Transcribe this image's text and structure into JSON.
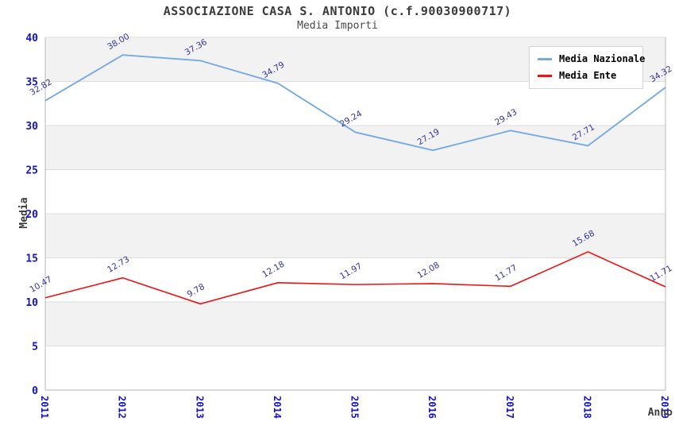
{
  "header": {
    "title": "ASSOCIAZIONE CASA S. ANTONIO (c.f.90030900717)",
    "subtitle": "Media Importi"
  },
  "chart_data": {
    "type": "line",
    "categories": [
      "2011",
      "2012",
      "2013",
      "2014",
      "2015",
      "2016",
      "2017",
      "2018",
      "2019"
    ],
    "series": [
      {
        "name": "Media Nazionale",
        "color": "#78aae2",
        "values": [
          32.82,
          38.0,
          37.36,
          34.79,
          29.24,
          27.19,
          29.43,
          27.71,
          34.32
        ]
      },
      {
        "name": "Media Ente",
        "color": "#ee1212",
        "values": [
          10.47,
          12.73,
          9.78,
          12.18,
          11.97,
          12.08,
          11.77,
          15.68,
          11.71
        ]
      }
    ],
    "xlabel": "Anno",
    "ylabel": "Media",
    "ylim": [
      0,
      40
    ],
    "ytick_step": 5,
    "yticks": [
      0,
      5,
      10,
      15,
      20,
      25,
      30,
      35,
      40
    ],
    "grid": true,
    "legend_position": "top-right",
    "data_label_decimals": 2
  },
  "colors": {
    "band_gray": "#f2f2f2",
    "band_white": "#ffffff",
    "gridline": "#dedede",
    "axis_line": "#c4c4c4",
    "tick_label": "#1212cc",
    "data_label": "#333399",
    "title_text": "#3b3b3b"
  }
}
